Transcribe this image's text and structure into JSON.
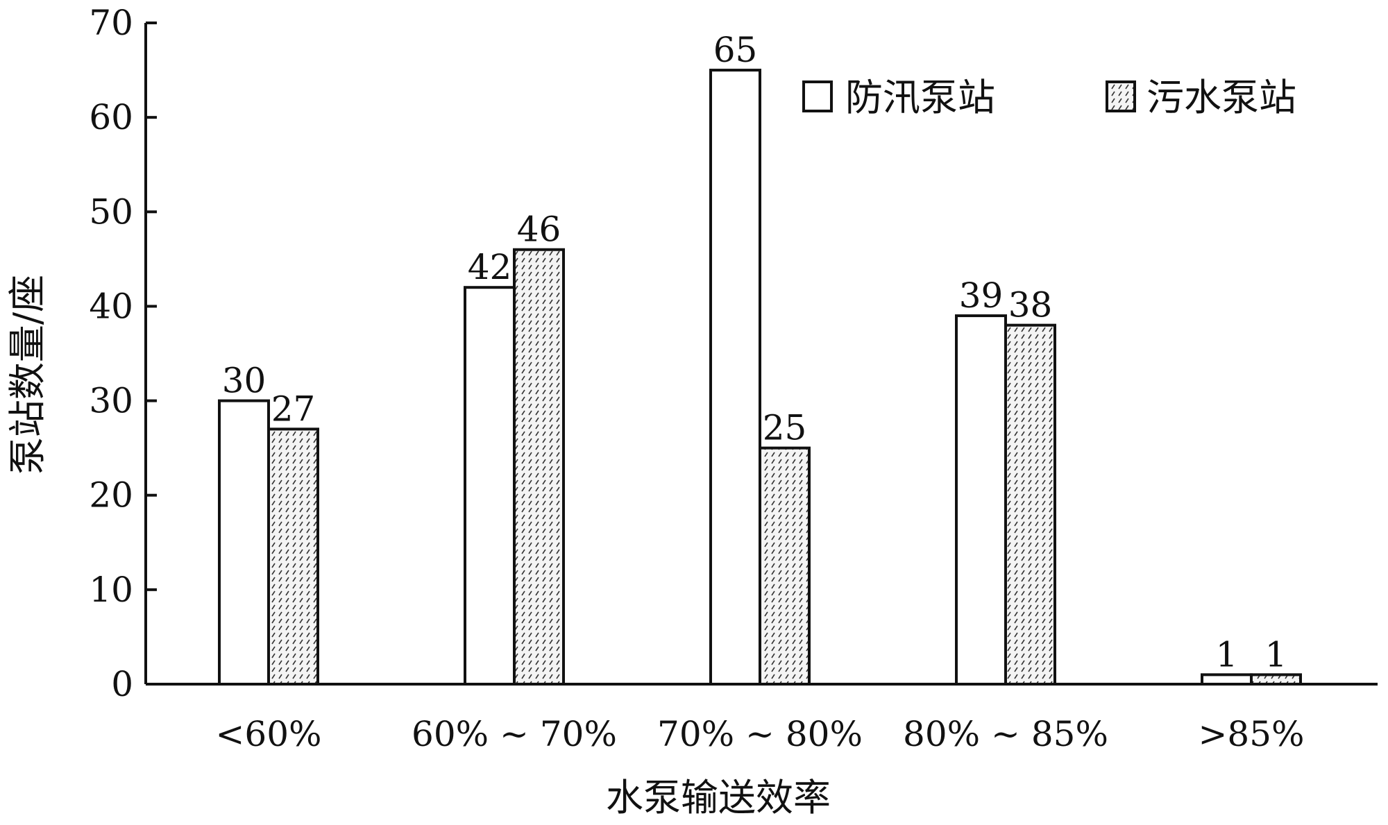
{
  "chart_data": {
    "type": "bar",
    "categories": [
      "<60%",
      "60% ~ 70%",
      "70% ~ 80%",
      "80% ~ 85%",
      ">85%"
    ],
    "series": [
      {
        "name": "防汛泵站",
        "values": [
          30,
          42,
          65,
          39,
          1
        ],
        "fill": "plain"
      },
      {
        "name": "污水泵站",
        "values": [
          27,
          46,
          25,
          38,
          1
        ],
        "fill": "hatched"
      }
    ],
    "data_labels": true,
    "xlabel": "水泵输送效率",
    "ylabel": "泵站数量/座",
    "ylim": [
      0,
      70
    ],
    "yticks": [
      0,
      10,
      20,
      30,
      40,
      50,
      60,
      70
    ],
    "grid": false,
    "legend_position": "top-right",
    "colors": {
      "bar_stroke": "#111111",
      "bar_fill": "#ffffff",
      "hatch": "#333333",
      "axis": "#111111"
    }
  }
}
